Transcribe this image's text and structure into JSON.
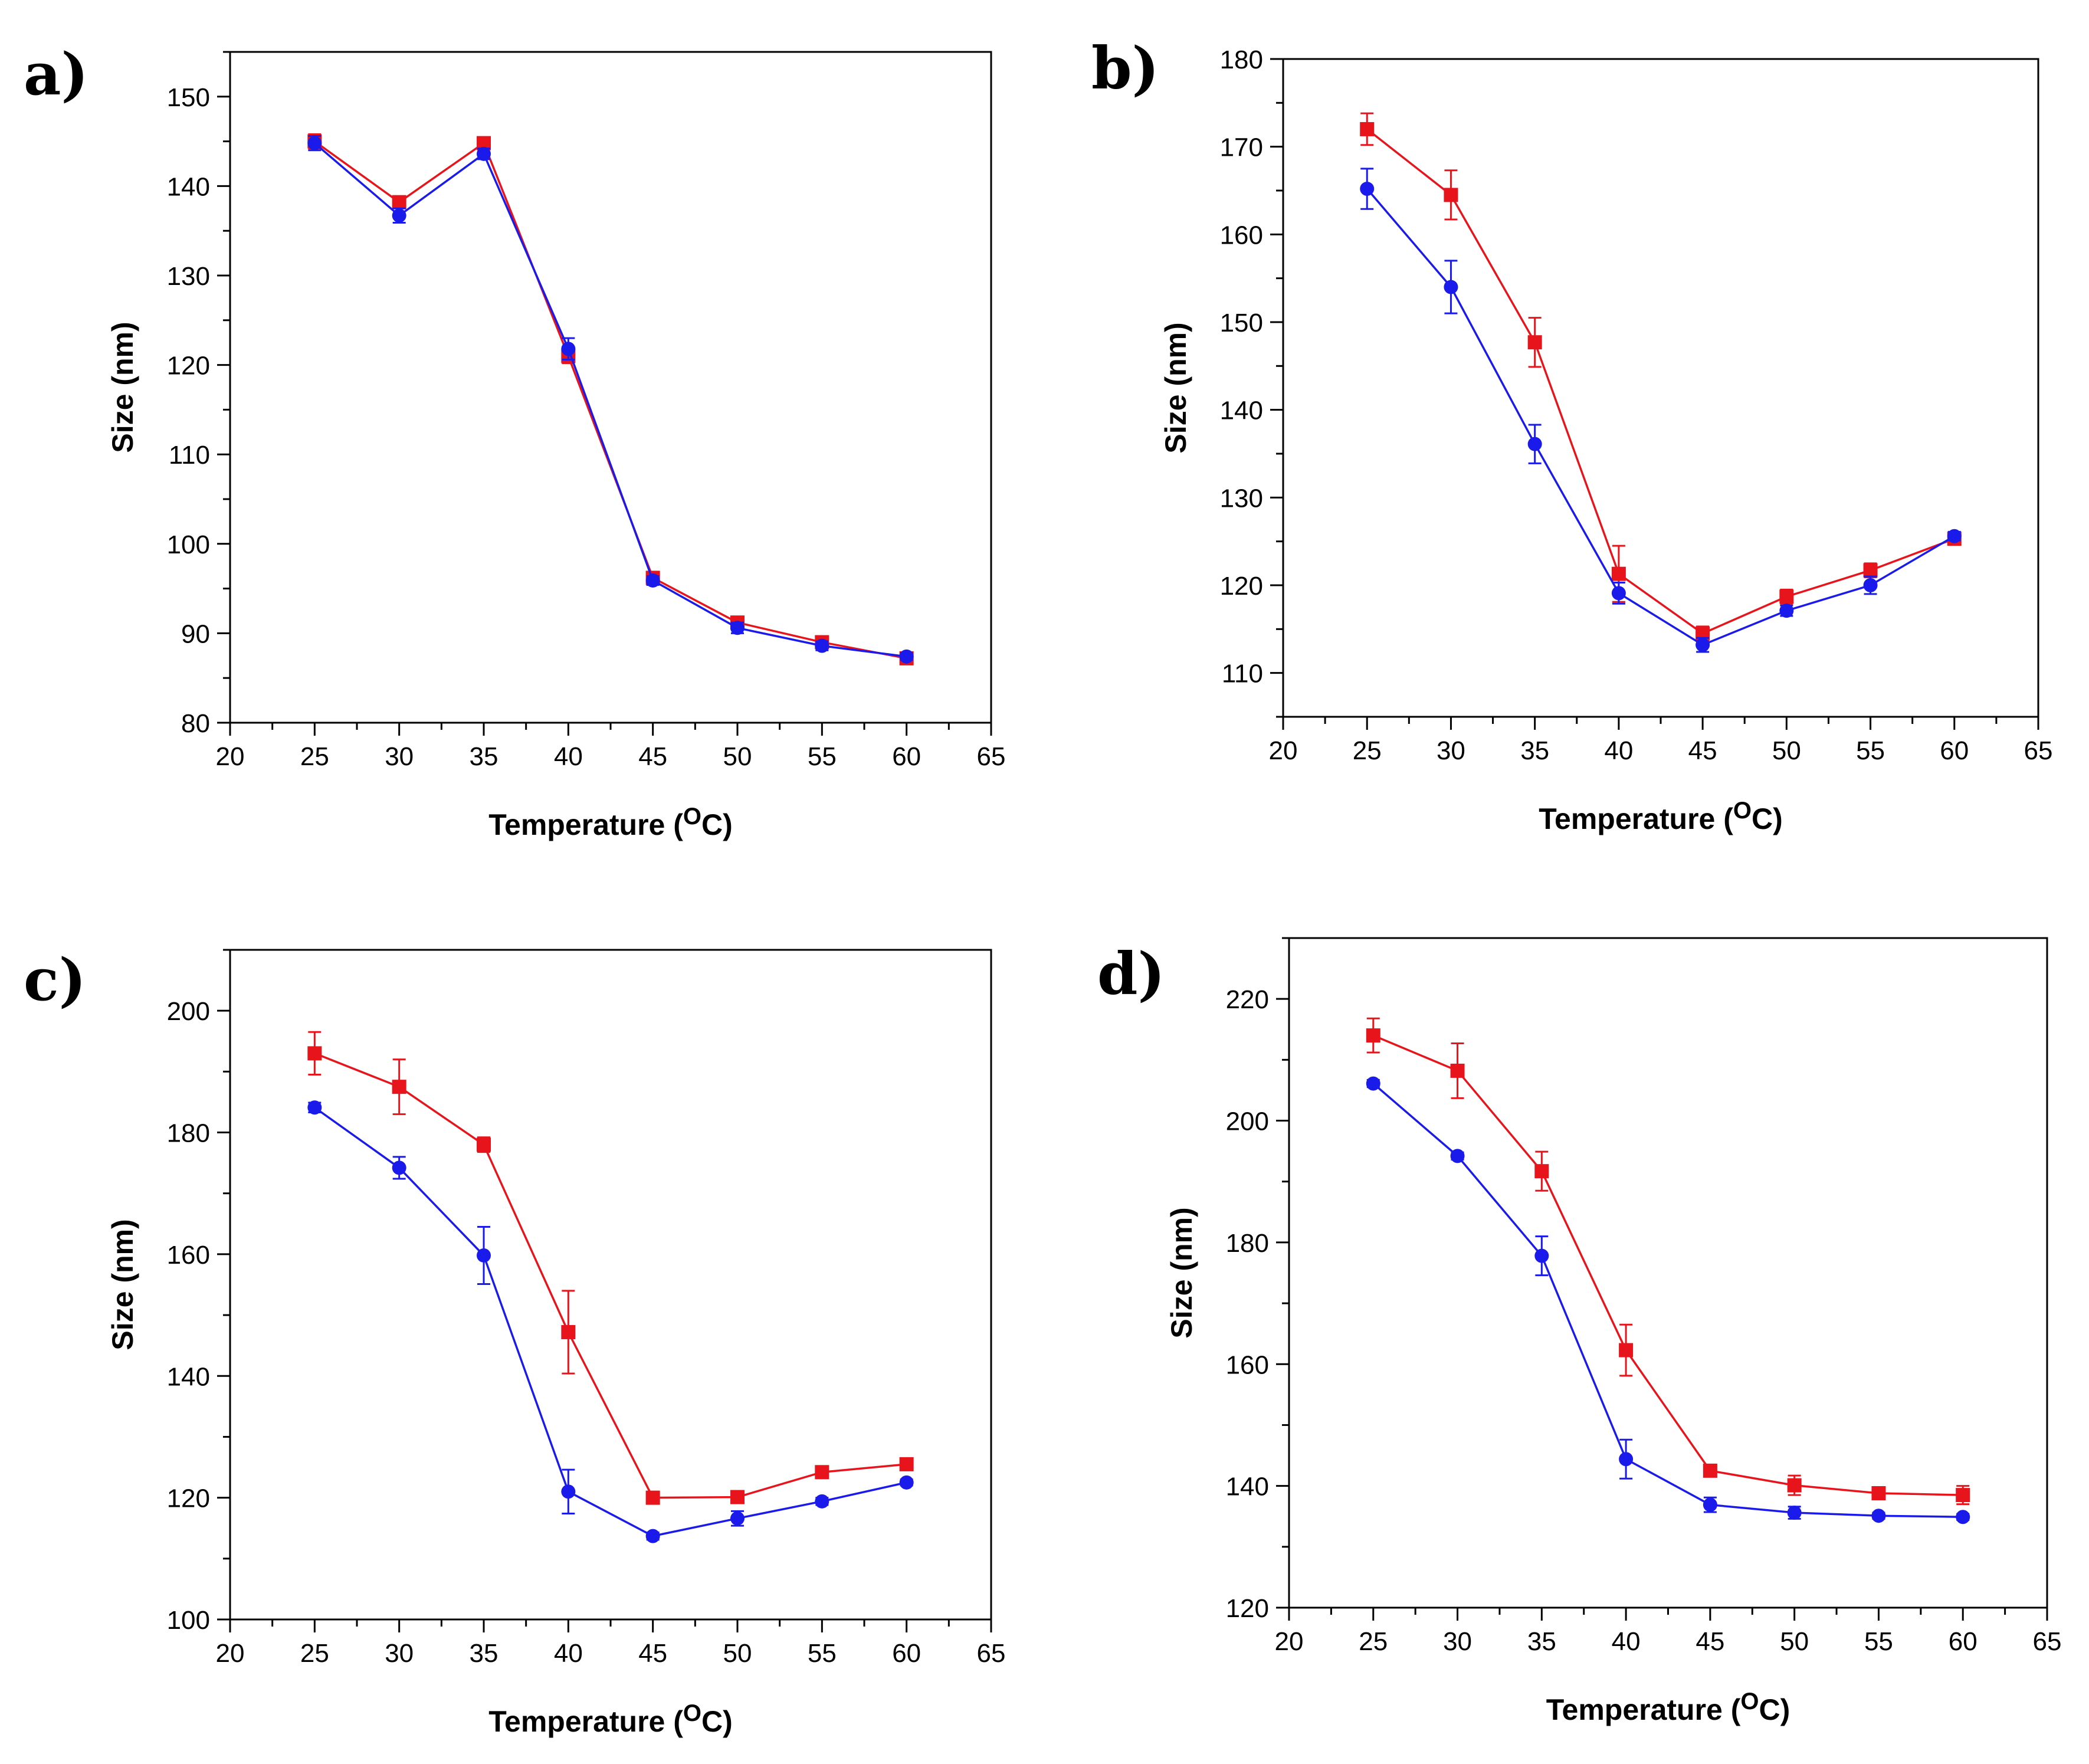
{
  "figure": {
    "description_labels": [
      "a)",
      "b)",
      "c)",
      "d)"
    ]
  },
  "chart_data": [
    {
      "type": "line",
      "panel_label": "a)",
      "xlabel": "Temperature (",
      "xlabel_sup": "O",
      "xlabel_unit": "C)",
      "ylabel": "Size (nm)",
      "xlim": [
        20,
        65
      ],
      "ylim": [
        80,
        155
      ],
      "xticks": [
        20,
        25,
        30,
        35,
        40,
        45,
        50,
        55,
        60,
        65
      ],
      "yticks": [
        80,
        90,
        100,
        110,
        120,
        130,
        140,
        150
      ],
      "x": [
        25,
        30,
        35,
        40,
        45,
        50,
        55,
        60
      ],
      "series": [
        {
          "name": "red squares",
          "color": "#e8141c",
          "marker": "square",
          "values": [
            145.0,
            138.2,
            144.8,
            121.0,
            96.2,
            91.2,
            89.0,
            87.2
          ],
          "errors": [
            0.8,
            0.5,
            0.6,
            0.8,
            0.5,
            0.5,
            0.5,
            0.4
          ]
        },
        {
          "name": "blue circles",
          "color": "#1a1aeb",
          "marker": "circle",
          "values": [
            144.8,
            136.7,
            143.6,
            121.8,
            95.9,
            90.6,
            88.6,
            87.4
          ],
          "errors": [
            0.8,
            0.8,
            0.6,
            1.2,
            0.5,
            0.6,
            0.5,
            0.4
          ]
        }
      ]
    },
    {
      "type": "line",
      "panel_label": "b)",
      "xlabel": "Temperature (",
      "xlabel_sup": "O",
      "xlabel_unit": "C)",
      "ylabel": "Size (nm)",
      "xlim": [
        20,
        65
      ],
      "ylim": [
        105,
        180
      ],
      "xticks": [
        20,
        25,
        30,
        35,
        40,
        45,
        50,
        55,
        60,
        65
      ],
      "yticks": [
        110,
        120,
        130,
        140,
        150,
        160,
        170,
        180
      ],
      "x": [
        25,
        30,
        35,
        40,
        45,
        50,
        55,
        60
      ],
      "series": [
        {
          "name": "red squares",
          "color": "#e8141c",
          "marker": "square",
          "values": [
            172.0,
            164.5,
            147.7,
            121.3,
            114.5,
            118.7,
            121.7,
            125.3
          ],
          "errors": [
            1.8,
            2.8,
            2.8,
            3.2,
            0.8,
            0.8,
            0.8,
            0.6
          ]
        },
        {
          "name": "blue circles",
          "color": "#1a1aeb",
          "marker": "circle",
          "values": [
            165.2,
            154.0,
            136.1,
            119.1,
            113.2,
            117.1,
            120.0,
            125.6
          ],
          "errors": [
            2.3,
            3.0,
            2.2,
            1.2,
            0.8,
            0.6,
            1.0,
            0.5
          ]
        }
      ]
    },
    {
      "type": "line",
      "panel_label": "c)",
      "xlabel": "Temperature (",
      "xlabel_sup": "O",
      "xlabel_unit": "C)",
      "ylabel": "Size (nm)",
      "xlim": [
        20,
        65
      ],
      "ylim": [
        100,
        210
      ],
      "xticks": [
        20,
        25,
        30,
        35,
        40,
        45,
        50,
        55,
        60,
        65
      ],
      "yticks": [
        100,
        120,
        140,
        160,
        180,
        200
      ],
      "x": [
        25,
        30,
        35,
        40,
        45,
        50,
        55,
        60
      ],
      "series": [
        {
          "name": "red squares",
          "color": "#e8141c",
          "marker": "square",
          "values": [
            193.0,
            187.5,
            178.0,
            147.2,
            120.0,
            120.1,
            124.2,
            125.5
          ],
          "errors": [
            3.5,
            4.5,
            1.2,
            6.8,
            1.0,
            1.0,
            0.8,
            0.8
          ]
        },
        {
          "name": "blue circles",
          "color": "#1a1aeb",
          "marker": "circle",
          "values": [
            184.1,
            174.2,
            159.8,
            121.0,
            113.7,
            116.6,
            119.4,
            122.5
          ],
          "errors": [
            0.8,
            1.8,
            4.7,
            3.6,
            0.6,
            1.2,
            0.6,
            0.5
          ]
        }
      ]
    },
    {
      "type": "line",
      "panel_label": "d)",
      "xlabel": "Temperature (",
      "xlabel_sup": "O",
      "xlabel_unit": "C)",
      "ylabel": "Size (nm)",
      "xlim": [
        20,
        65
      ],
      "ylim": [
        120,
        230
      ],
      "xticks": [
        20,
        25,
        30,
        35,
        40,
        45,
        50,
        55,
        60,
        65
      ],
      "yticks": [
        120,
        140,
        160,
        180,
        200,
        220
      ],
      "x": [
        25,
        30,
        35,
        40,
        45,
        50,
        55,
        60
      ],
      "series": [
        {
          "name": "red squares",
          "color": "#e8141c",
          "marker": "square",
          "values": [
            214.0,
            208.2,
            191.7,
            162.3,
            142.5,
            140.1,
            138.8,
            138.5
          ],
          "errors": [
            2.8,
            4.5,
            3.2,
            4.2,
            0.8,
            1.6,
            0.8,
            1.5
          ]
        },
        {
          "name": "blue circles",
          "color": "#1a1aeb",
          "marker": "circle",
          "values": [
            206.1,
            194.2,
            177.8,
            144.4,
            136.9,
            135.6,
            135.1,
            134.9
          ],
          "errors": [
            0.6,
            0.6,
            3.2,
            3.2,
            1.2,
            1.0,
            0.5,
            0.5
          ]
        }
      ]
    }
  ]
}
